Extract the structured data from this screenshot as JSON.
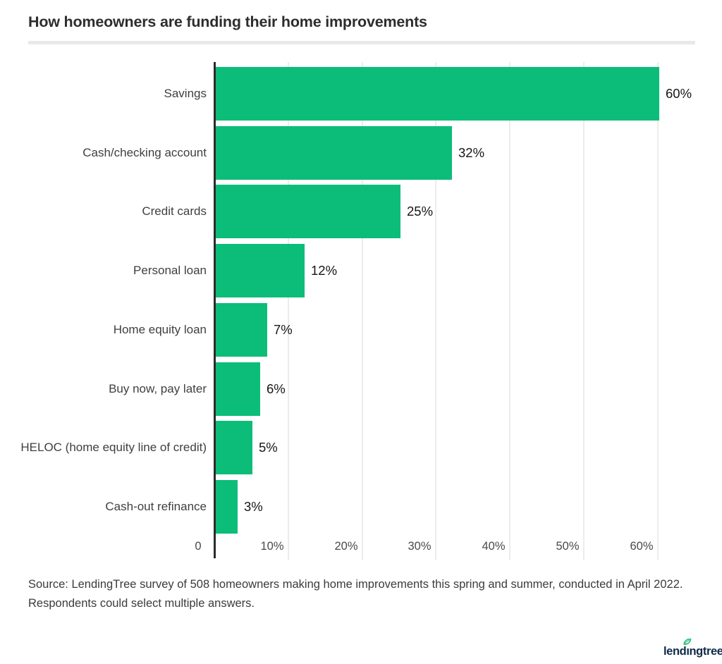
{
  "title": "How homeowners are funding their home improvements",
  "source": {
    "lines": [
      "Source: LendingTree survey of 508 homeowners making home improvements this spring and summer, conducted in April 2022.",
      "Respondents could select multiple answers."
    ]
  },
  "logo": {
    "text": "lendingtree",
    "text_color": "#0e2b49",
    "leaf_color": "#23c17d"
  },
  "colors": {
    "bar": "#0cbd79",
    "axis_line": "#2b2b2b",
    "gridline": "#ececec",
    "title_divider": "#e9e9e9",
    "title_text": "#2d2d2d",
    "category_text": "#3f3f3f",
    "value_text": "#161616",
    "tick_text": "#4a4a4a"
  },
  "chart_data": {
    "type": "bar",
    "orientation": "horizontal",
    "title": "How homeowners are funding their home improvements",
    "categories": [
      "Savings",
      "Cash/checking account",
      "Credit cards",
      "Personal loan",
      "Home equity loan",
      "Buy now, pay later",
      "HELOC (home equity line of credit)",
      "Cash-out refinance"
    ],
    "values": [
      60,
      32,
      25,
      12,
      7,
      6,
      5,
      3
    ],
    "value_labels": [
      "60%",
      "32%",
      "25%",
      "12%",
      "7%",
      "6%",
      "5%",
      "3%"
    ],
    "x_ticks": [
      "0",
      "10%",
      "20%",
      "30%",
      "40%",
      "50%",
      "60%"
    ],
    "x_tick_values": [
      0,
      10,
      20,
      30,
      40,
      50,
      60
    ],
    "xlim": [
      0,
      66
    ],
    "xlabel": "",
    "ylabel": "",
    "grid": "vertical",
    "legend": "none",
    "bar_color": "#0cbd79"
  }
}
